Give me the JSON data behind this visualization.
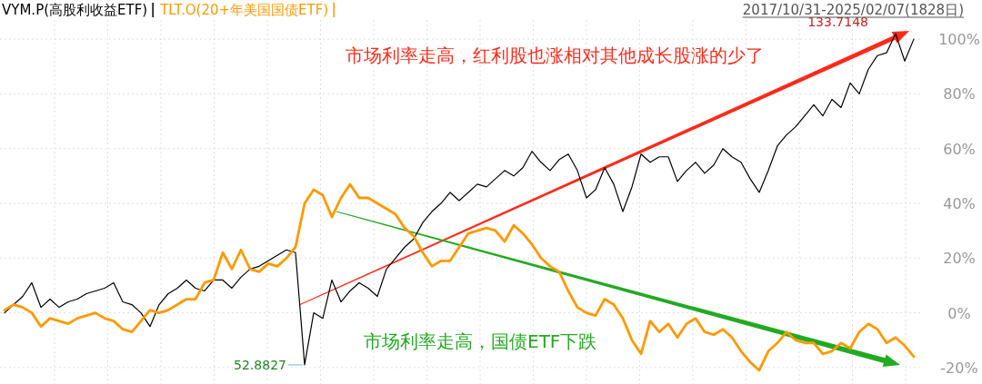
{
  "chart_data": {
    "type": "line",
    "subtitle": "2017/10/31-2025/02/07(1828日)",
    "categories": [
      null,
      null,
      null,
      null,
      null,
      null,
      null,
      null,
      null,
      null,
      null,
      null,
      null,
      null,
      null,
      null,
      null,
      null,
      null,
      null,
      null,
      null,
      null,
      null,
      null,
      null,
      null,
      null,
      null,
      null,
      null,
      null,
      null,
      null,
      null,
      null,
      null,
      null,
      null,
      null,
      null,
      null,
      null,
      null,
      null,
      null,
      null,
      null,
      null,
      null,
      null,
      null,
      null,
      null,
      null,
      null,
      null,
      null,
      null,
      null,
      null,
      null,
      null,
      null,
      null,
      null,
      null,
      null,
      null,
      null,
      null,
      null,
      null,
      null,
      null,
      null,
      null,
      null,
      null,
      null,
      null,
      null,
      null,
      null,
      null,
      null,
      null,
      null,
      null,
      null,
      null,
      null,
      null,
      null,
      null,
      null,
      null,
      null,
      null,
      null,
      null
    ],
    "series": [
      {
        "name": "VYM.P(高股利收益ETF)",
        "color": "#000000",
        "values": [
          0,
          3,
          6,
          11,
          2,
          5,
          2,
          4,
          5,
          7,
          8,
          9,
          11,
          4,
          3,
          0,
          -5,
          3,
          7,
          9,
          12,
          9,
          8,
          12,
          12,
          9,
          13,
          16,
          17,
          19,
          21,
          23,
          22,
          -19,
          0,
          -2,
          12,
          4,
          8,
          11,
          9,
          6,
          16,
          20,
          24,
          27,
          33,
          37,
          40,
          44,
          41,
          44,
          47,
          46,
          49,
          52,
          50,
          53,
          59,
          55,
          52,
          56,
          58,
          52,
          42,
          45,
          53,
          47,
          37,
          46,
          58,
          55,
          57,
          57,
          48,
          52,
          55,
          51,
          54,
          60,
          57,
          55,
          49,
          44,
          52,
          61,
          65,
          68,
          72,
          76,
          72,
          78,
          75,
          84,
          80,
          89,
          94,
          95,
          102,
          92,
          100
        ]
      },
      {
        "name": "TLT.O(20+年美国国债ETF)",
        "color": "#ff9900",
        "values": [
          1,
          3,
          2,
          0,
          -5,
          -2,
          -3,
          -4,
          -2,
          -1,
          0,
          -2,
          -3,
          -6,
          -7,
          -3,
          1,
          0,
          1,
          3,
          5,
          5,
          11,
          12,
          22,
          16,
          23,
          16,
          15,
          18,
          17,
          20,
          24,
          40,
          45,
          43,
          35,
          42,
          47,
          42,
          42,
          40,
          38,
          36,
          31,
          28,
          22,
          17,
          19,
          19,
          24,
          29,
          30,
          31,
          30,
          26,
          32,
          29,
          25,
          20,
          17,
          15,
          8,
          2,
          0,
          -1,
          5,
          3,
          -2,
          -10,
          -15,
          -3,
          -7,
          -4,
          -9,
          -4,
          -2,
          -7,
          -8,
          -6,
          -9,
          -14,
          -18,
          -21,
          -14,
          -11,
          -7,
          -10,
          -11,
          -11,
          -15,
          -14,
          -11,
          -13,
          -7,
          -4,
          -6,
          -11,
          -9,
          -12,
          -16
        ]
      }
    ],
    "ylim": [
      -26,
      107
    ],
    "yticks": [
      {
        "value": -20,
        "label": "-20%"
      },
      {
        "value": 0,
        "label": "0%"
      },
      {
        "value": 20,
        "label": "20%"
      },
      {
        "value": 40,
        "label": "40%"
      },
      {
        "value": 60,
        "label": "60%"
      },
      {
        "value": 80,
        "label": "80%"
      },
      {
        "value": 100,
        "label": "100%"
      }
    ],
    "grid": true,
    "legend": "top left",
    "annotations": [
      {
        "text": "市场利率走高，红利股也涨相对其他成长股涨的少了"
      },
      {
        "text": "市场利率走高，国债ETF下跌"
      },
      "52.8827",
      "133.7148"
    ]
  }
}
